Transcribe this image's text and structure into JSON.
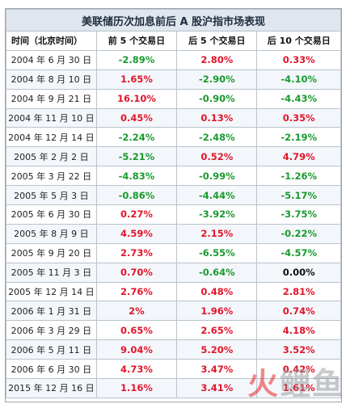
{
  "title": "美联储历次加息前后 A 股沪指市场表现",
  "headers": [
    "时间（北京时间）",
    "前 5 个交易日",
    "后 5 个交易日",
    "后 10 个交易日"
  ],
  "rows": [
    {
      "date": "2004 年 6 月 30 日",
      "v1": "-2.89%",
      "v2": "2.80%",
      "v3": "0.33%"
    },
    {
      "date": "2004 年 8 月 10 日",
      "v1": "1.65%",
      "v2": "-2.90%",
      "v3": "-4.10%"
    },
    {
      "date": "2004 年 9 月 21 日",
      "v1": "16.10%",
      "v2": "-0.90%",
      "v3": "-4.43%"
    },
    {
      "date": "2004 年 11 月 10 日",
      "v1": "0.45%",
      "v2": "0.13%",
      "v3": "0.35%"
    },
    {
      "date": "2004 年 12 月 14 日",
      "v1": "-2.24%",
      "v2": "-2.48%",
      "v3": "-2.19%"
    },
    {
      "date": "2005 年 2 月 2 日",
      "v1": "-5.21%",
      "v2": "0.52%",
      "v3": "4.79%"
    },
    {
      "date": "2005 年 3 月 22 日",
      "v1": "-4.83%",
      "v2": "-0.99%",
      "v3": "-1.26%"
    },
    {
      "date": "2005 年 5 月 3 日",
      "v1": "-0.86%",
      "v2": "-4.44%",
      "v3": "-5.17%"
    },
    {
      "date": "2005 年 6 月 30 日",
      "v1": "0.27%",
      "v2": "-3.92%",
      "v3": "-3.75%"
    },
    {
      "date": "2005 年 8 月 9 日",
      "v1": "4.59%",
      "v2": "2.15%",
      "v3": "-0.22%"
    },
    {
      "date": "2005 年 9 月 20 日",
      "v1": "2.73%",
      "v2": "-6.55%",
      "v3": "-4.57%"
    },
    {
      "date": "2005 年 11 月 3 日",
      "v1": "0.70%",
      "v2": "-0.64%",
      "v3": "0.00%"
    },
    {
      "date": "2005 年 12 月 14 日",
      "v1": "2.76%",
      "v2": "0.48%",
      "v3": "2.81%"
    },
    {
      "date": "2006 年 1 月 31 日",
      "v1": "2%",
      "v2": "1.96%",
      "v3": "0.74%"
    },
    {
      "date": "2006 年 3 月 29 日",
      "v1": "0.65%",
      "v2": "2.65%",
      "v3": "4.18%"
    },
    {
      "date": "2006 年 5 月 11 日",
      "v1": "9.04%",
      "v2": "5.20%",
      "v3": "3.52%"
    },
    {
      "date": "2006 年 6 月 30 日",
      "v1": "4.73%",
      "v2": "3.47%",
      "v3": "0.42%"
    },
    {
      "date": "2015 年 12 月 16 日",
      "v1": "1.16%",
      "v2": "3.41%",
      "v3": "1.61%"
    }
  ],
  "watermark": [
    "火",
    "鲤",
    "鱼",
    "鱼"
  ],
  "colors": {
    "positive": "#e2152a",
    "negative": "#1a9a2e",
    "zero": "#111111",
    "title_bg": "#dfe6ee"
  }
}
